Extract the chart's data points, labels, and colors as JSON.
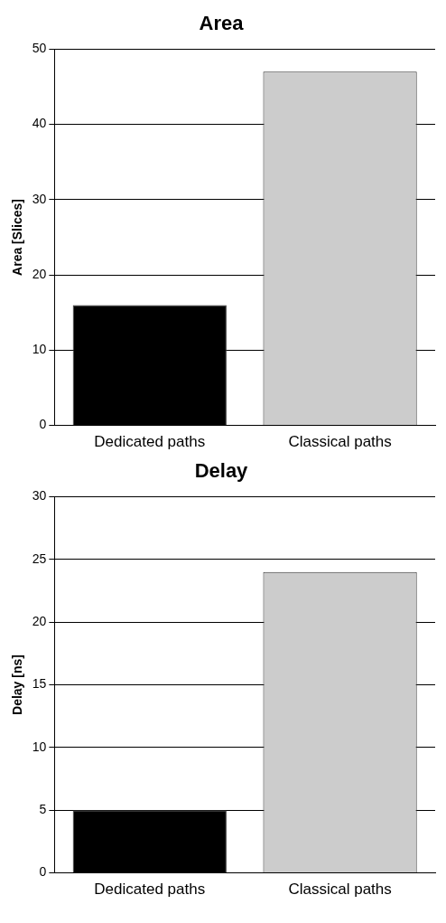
{
  "chart_data": [
    {
      "type": "bar",
      "title": "Area",
      "ylabel": "Area [Slices]",
      "categories": [
        "Dedicated paths",
        "Classical paths"
      ],
      "values": [
        16,
        47
      ],
      "colors": [
        "#000000",
        "#cccccc"
      ],
      "ylim": [
        0,
        50
      ],
      "yticks": [
        0,
        10,
        20,
        30,
        40,
        50
      ],
      "grid": "y",
      "legend": false
    },
    {
      "type": "bar",
      "title": "Delay",
      "ylabel": "Delay [ns]",
      "categories": [
        "Dedicated paths",
        "Classical paths"
      ],
      "values": [
        5,
        24
      ],
      "colors": [
        "#000000",
        "#cccccc"
      ],
      "ylim": [
        0,
        30
      ],
      "yticks": [
        0,
        5,
        10,
        15,
        20,
        25,
        30
      ],
      "grid": "y",
      "legend": false
    }
  ]
}
